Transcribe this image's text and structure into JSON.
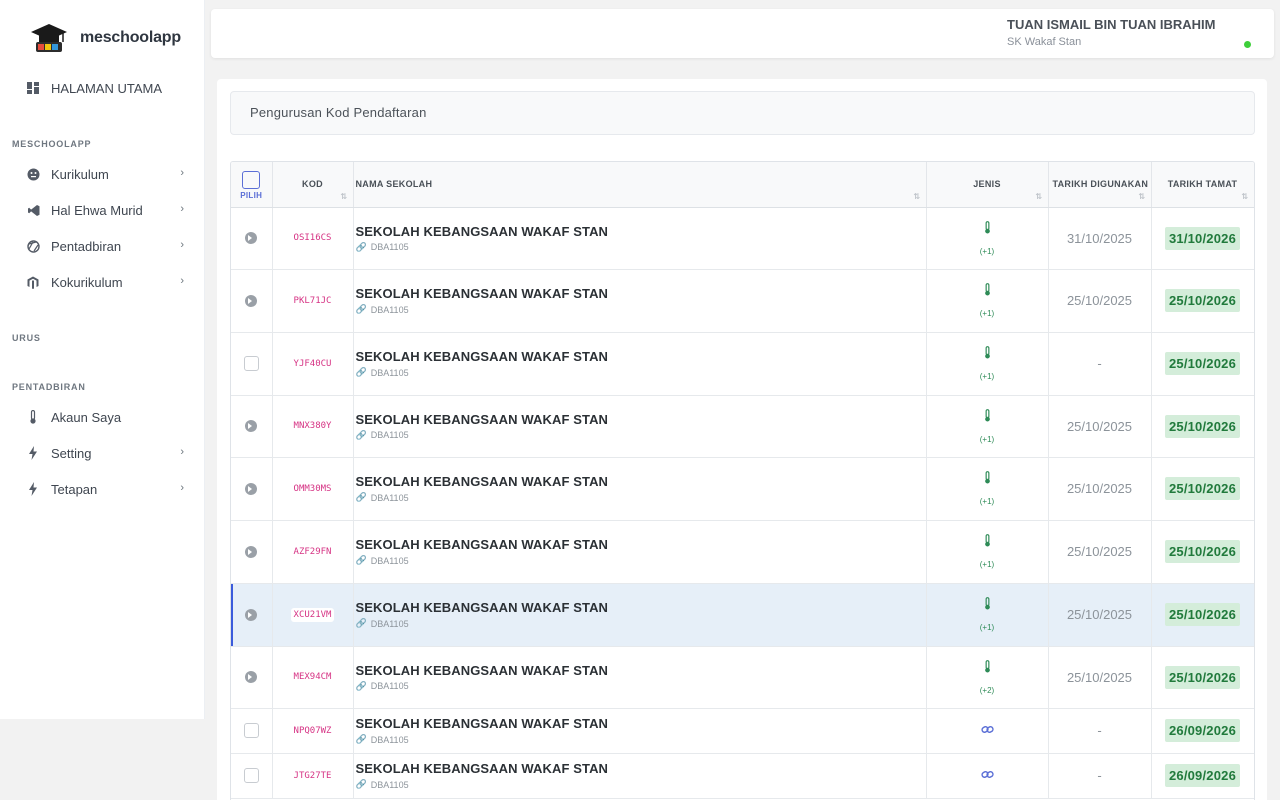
{
  "brand": {
    "name": "meschoolapp"
  },
  "sidebar": {
    "home": "HALAMAN UTAMA",
    "sections": {
      "meschoolapp": "MESCHOOLAPP",
      "urus": "URUS",
      "pentadbiran": "PENTADBIRAN"
    },
    "items": [
      {
        "label": "Kurikulum",
        "icon": "face-icon"
      },
      {
        "label": "Hal Ehwa Murid",
        "icon": "vscode-icon"
      },
      {
        "label": "Pentadbiran",
        "icon": "aperture-icon"
      },
      {
        "label": "Kokurikulum",
        "icon": "magento-icon"
      },
      {
        "label": "Akaun Saya",
        "icon": "thermometer-icon"
      },
      {
        "label": "Setting",
        "icon": "bolt-icon"
      },
      {
        "label": "Tetapan",
        "icon": "bolt-icon"
      }
    ]
  },
  "header": {
    "user_name": "TUAN ISMAIL BIN TUAN IBRAHIM",
    "school": "SK Wakaf Stan"
  },
  "card": {
    "title": "Pengurusan Kod Pendaftaran"
  },
  "table": {
    "columns": {
      "pilih": "PILIH",
      "kod": "KOD",
      "nama": "NAMA SEKOLAH",
      "jenis": "JENIS",
      "digunakan": "TARIKH DIGUNAKAN",
      "tamat": "TARIKH TAMAT"
    },
    "rows": [
      {
        "kod": "OSI16CS",
        "nama": "SEKOLAH KEBANGSAAN WAKAF STAN",
        "code": "DBA1105",
        "jenis_count": "(+1)",
        "digunakan": "31/10/2025",
        "tamat": "31/10/2026"
      },
      {
        "kod": "PKL71JC",
        "nama": "SEKOLAH KEBANGSAAN WAKAF STAN",
        "code": "DBA1105",
        "jenis_count": "(+1)",
        "digunakan": "25/10/2025",
        "tamat": "25/10/2026"
      },
      {
        "kod": "YJF40CU",
        "nama": "SEKOLAH KEBANGSAAN WAKAF STAN",
        "code": "DBA1105",
        "jenis_count": "(+1)",
        "digunakan": "-",
        "tamat": "25/10/2026"
      },
      {
        "kod": "MNX380Y",
        "nama": "SEKOLAH KEBANGSAAN WAKAF STAN",
        "code": "DBA1105",
        "jenis_count": "(+1)",
        "digunakan": "25/10/2025",
        "tamat": "25/10/2026"
      },
      {
        "kod": "OMM30MS",
        "nama": "SEKOLAH KEBANGSAAN WAKAF STAN",
        "code": "DBA1105",
        "jenis_count": "(+1)",
        "digunakan": "25/10/2025",
        "tamat": "25/10/2026"
      },
      {
        "kod": "AZF29FN",
        "nama": "SEKOLAH KEBANGSAAN WAKAF STAN",
        "code": "DBA1105",
        "jenis_count": "(+1)",
        "digunakan": "25/10/2025",
        "tamat": "25/10/2026"
      },
      {
        "kod": "XCU21VM",
        "nama": "SEKOLAH KEBANGSAAN WAKAF STAN",
        "code": "DBA1105",
        "jenis_count": "(+1)",
        "digunakan": "25/10/2025",
        "tamat": "25/10/2026"
      },
      {
        "kod": "MEX94CM",
        "nama": "SEKOLAH KEBANGSAAN WAKAF STAN",
        "code": "DBA1105",
        "jenis_count": "(+2)",
        "digunakan": "25/10/2025",
        "tamat": "25/10/2026"
      },
      {
        "kod": "NPQ07WZ",
        "nama": "SEKOLAH KEBANGSAAN WAKAF STAN",
        "code": "DBA1105",
        "jenis_count": "",
        "digunakan": "-",
        "tamat": "26/09/2026"
      },
      {
        "kod": "JTG27TE",
        "nama": "SEKOLAH KEBANGSAAN WAKAF STAN",
        "code": "DBA1105",
        "jenis_count": "",
        "digunakan": "-",
        "tamat": "26/09/2026"
      }
    ]
  },
  "colors": {
    "accent": "#5b6fd6",
    "kod": "#d63384",
    "success_bg": "#d4edda",
    "success_text": "#217a3c",
    "online": "#3ecf3a"
  }
}
